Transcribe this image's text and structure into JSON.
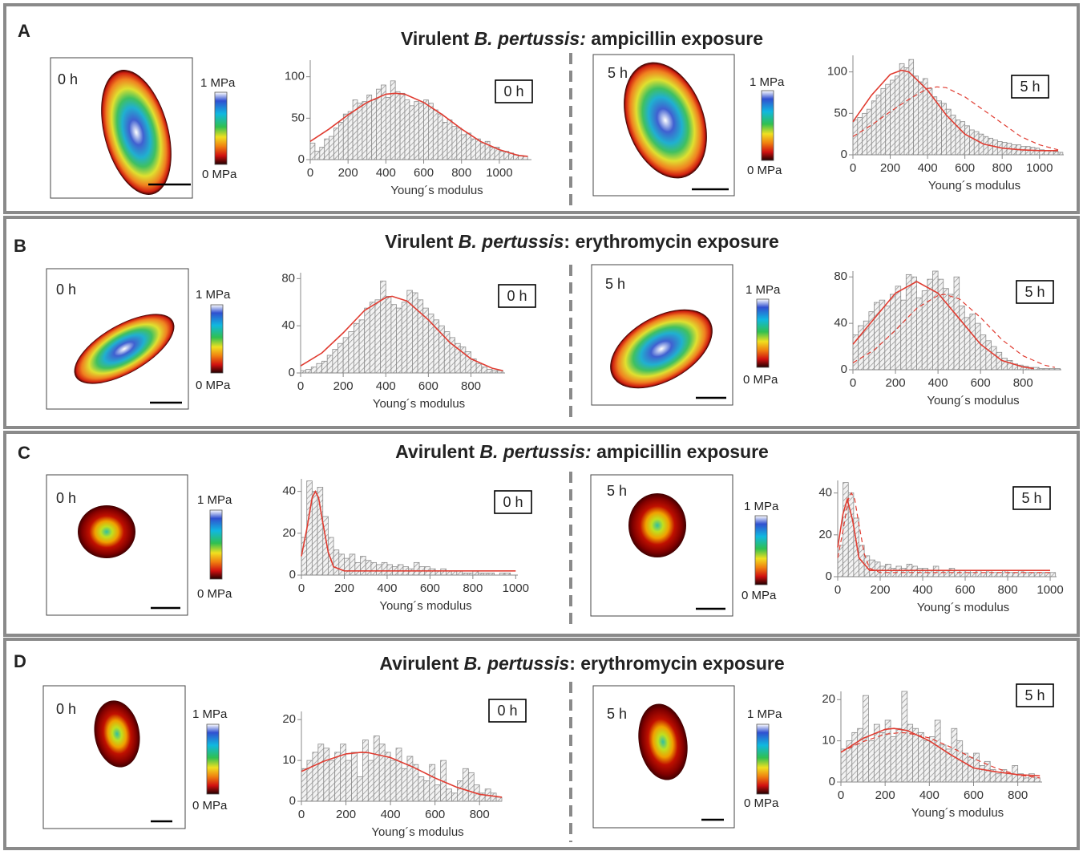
{
  "panels": [
    {
      "label": "A",
      "title": [
        "Virulent ",
        "B. pertussis:",
        " ampicillin exposure"
      ],
      "maps": [
        {
          "time": "0 h",
          "scale_max": "1 MPa",
          "scale_min": "0 MPa"
        },
        {
          "time": "5 h",
          "scale_max": "1 MPa",
          "scale_min": "0 MPa"
        }
      ]
    },
    {
      "label": "B",
      "title": [
        "Virulent ",
        "B. pertussis",
        ": erythromycin exposure"
      ],
      "maps": [
        {
          "time": "0 h",
          "scale_max": "1 MPa",
          "scale_min": "0 MPa"
        },
        {
          "time": "5 h",
          "scale_max": "1 MPa",
          "scale_min": "0 MPa"
        }
      ]
    },
    {
      "label": "C",
      "title": [
        "Avirulent ",
        "B. pertussis:",
        " ampicillin exposure"
      ],
      "maps": [
        {
          "time": "0 h",
          "scale_max": "1 MPa",
          "scale_min": "0 MPa"
        },
        {
          "time": "5 h",
          "scale_max": "1 MPa",
          "scale_min": "0 MPa"
        }
      ]
    },
    {
      "label": "D",
      "title": [
        "Avirulent ",
        "B. pertussis",
        ": erythromycin exposure"
      ],
      "maps": [
        {
          "time": "0 h",
          "scale_max": "1 MPa",
          "scale_min": "0 MPa"
        },
        {
          "time": "5 h",
          "scale_max": "1 MPa",
          "scale_min": "0 MPa"
        }
      ]
    }
  ],
  "chart_data": [
    {
      "type": "histogram",
      "time_label": "0 h",
      "xlabel": "Young´s modulus",
      "color": "#8c8c8c",
      "bins": [
        0,
        25,
        50,
        75,
        100,
        125,
        150,
        175,
        200,
        225,
        250,
        275,
        300,
        325,
        350,
        375,
        400,
        425,
        450,
        475,
        500,
        525,
        550,
        575,
        600,
        625,
        650,
        675,
        700,
        725,
        750,
        775,
        800,
        825,
        850,
        875,
        900,
        925,
        950,
        975,
        1000,
        1025,
        1050,
        1075,
        1100,
        1125,
        1150
      ],
      "values": [
        20,
        10,
        15,
        25,
        28,
        38,
        45,
        55,
        58,
        72,
        68,
        70,
        78,
        72,
        85,
        90,
        75,
        95,
        82,
        80,
        72,
        65,
        70,
        68,
        72,
        68,
        60,
        55,
        45,
        48,
        40,
        38,
        30,
        32,
        25,
        25,
        20,
        22,
        15,
        15,
        10,
        10,
        8,
        6,
        5,
        4
      ],
      "xlim": [
        0,
        1170
      ],
      "ylim": [
        0,
        120
      ],
      "xticks": [
        0,
        200,
        400,
        600,
        800,
        1000
      ],
      "yticks": [
        0,
        50,
        100
      ],
      "fits": [
        {
          "style": "solid",
          "color": "#e03c31",
          "x": [
            0,
            100,
            200,
            300,
            400,
            450,
            500,
            600,
            700,
            800,
            900,
            1000,
            1100,
            1150
          ],
          "values": [
            22,
            37,
            54,
            69,
            79,
            80,
            79,
            69,
            54,
            37,
            22,
            12,
            5,
            4
          ]
        }
      ]
    },
    {
      "type": "histogram",
      "time_label": "5 h",
      "xlabel": "Young´s modulus",
      "color": "#8c8c8c",
      "bins": [
        0,
        25,
        50,
        75,
        100,
        125,
        150,
        175,
        200,
        225,
        250,
        275,
        300,
        325,
        350,
        375,
        400,
        425,
        450,
        475,
        500,
        525,
        550,
        575,
        600,
        625,
        650,
        675,
        700,
        725,
        750,
        775,
        800,
        825,
        850,
        875,
        900,
        925,
        950,
        975,
        1000,
        1025,
        1050,
        1075,
        1100,
        1125
      ],
      "values": [
        42,
        45,
        50,
        55,
        65,
        72,
        80,
        85,
        90,
        95,
        110,
        105,
        115,
        95,
        88,
        92,
        80,
        70,
        65,
        62,
        55,
        48,
        42,
        40,
        35,
        30,
        28,
        25,
        22,
        20,
        18,
        16,
        15,
        14,
        12,
        12,
        10,
        10,
        9,
        8,
        6,
        5,
        5,
        4,
        3
      ],
      "xlim": [
        0,
        1130
      ],
      "ylim": [
        0,
        120
      ],
      "xticks": [
        0,
        200,
        400,
        600,
        800,
        1000
      ],
      "yticks": [
        0,
        50,
        100
      ],
      "fits": [
        {
          "style": "solid",
          "color": "#e03c31",
          "x": [
            0,
            100,
            200,
            260,
            300,
            400,
            500,
            600,
            700,
            800,
            900,
            1000,
            1100
          ],
          "values": [
            40,
            72,
            97,
            102,
            100,
            78,
            48,
            25,
            13,
            8,
            6,
            5,
            5
          ]
        },
        {
          "style": "dashed",
          "color": "#e03c31",
          "x": [
            0,
            100,
            200,
            300,
            400,
            450,
            500,
            600,
            700,
            800,
            900,
            1000,
            1100
          ],
          "values": [
            22,
            36,
            52,
            67,
            80,
            82,
            81,
            70,
            54,
            38,
            22,
            12,
            6
          ]
        }
      ]
    },
    {
      "type": "histogram",
      "time_label": "0 h",
      "xlabel": "Young´s modulus",
      "color": "#8c8c8c",
      "bins": [
        0,
        25,
        50,
        75,
        100,
        125,
        150,
        175,
        200,
        225,
        250,
        275,
        300,
        325,
        350,
        375,
        400,
        425,
        450,
        475,
        500,
        525,
        550,
        575,
        600,
        625,
        650,
        675,
        700,
        725,
        750,
        775,
        800,
        825,
        850,
        875,
        900,
        925,
        950
      ],
      "values": [
        2,
        3,
        5,
        8,
        10,
        15,
        20,
        25,
        30,
        35,
        42,
        45,
        55,
        60,
        62,
        78,
        65,
        58,
        55,
        60,
        70,
        68,
        62,
        55,
        50,
        45,
        40,
        35,
        30,
        25,
        22,
        18,
        12,
        8,
        5,
        3,
        2,
        2
      ],
      "xlim": [
        0,
        960
      ],
      "ylim": [
        0,
        85
      ],
      "xticks": [
        0,
        200,
        400,
        600,
        800
      ],
      "yticks": [
        0,
        40,
        80
      ],
      "fits": [
        {
          "style": "solid",
          "color": "#e03c31",
          "x": [
            0,
            100,
            200,
            300,
            400,
            430,
            500,
            600,
            700,
            800,
            900,
            950
          ],
          "values": [
            6,
            17,
            34,
            53,
            64,
            65,
            61,
            45,
            26,
            12,
            4,
            2
          ]
        }
      ]
    },
    {
      "type": "histogram",
      "time_label": "5 h",
      "xlabel": "Young´s modulus",
      "color": "#8c8c8c",
      "bins": [
        0,
        25,
        50,
        75,
        100,
        125,
        150,
        175,
        200,
        225,
        250,
        275,
        300,
        325,
        350,
        375,
        400,
        425,
        450,
        475,
        500,
        525,
        550,
        575,
        600,
        625,
        650,
        675,
        700,
        725,
        750,
        775,
        800,
        825,
        850,
        875,
        900,
        925,
        950,
        975
      ],
      "values": [
        30,
        38,
        42,
        50,
        58,
        60,
        55,
        65,
        72,
        60,
        82,
        80,
        62,
        68,
        78,
        85,
        78,
        70,
        65,
        80,
        55,
        45,
        48,
        40,
        30,
        25,
        20,
        15,
        10,
        8,
        5,
        4,
        3,
        2,
        2,
        1,
        1,
        1,
        1
      ],
      "xlim": [
        0,
        980
      ],
      "ylim": [
        0,
        85
      ],
      "xticks": [
        0,
        200,
        400,
        600,
        800
      ],
      "yticks": [
        0,
        40,
        80
      ],
      "fits": [
        {
          "style": "solid",
          "color": "#e03c31",
          "x": [
            0,
            100,
            200,
            300,
            400,
            500,
            600,
            700,
            800,
            850
          ],
          "values": [
            22,
            44,
            66,
            76,
            66,
            44,
            22,
            8,
            2.4,
            1
          ]
        },
        {
          "style": "dashed",
          "color": "#e03c31",
          "x": [
            0,
            100,
            200,
            300,
            400,
            430,
            500,
            600,
            700,
            800,
            900,
            950
          ],
          "values": [
            6,
            17,
            34,
            53,
            64,
            65,
            61,
            45,
            26,
            12,
            4,
            2
          ]
        }
      ]
    },
    {
      "type": "histogram",
      "time_label": "0 h",
      "xlabel": "Young´s modulus",
      "color": "#8c8c8c",
      "bins": [
        0,
        25,
        50,
        75,
        100,
        125,
        150,
        175,
        200,
        225,
        250,
        275,
        300,
        325,
        350,
        375,
        400,
        425,
        450,
        475,
        500,
        525,
        550,
        575,
        600,
        625,
        650,
        675,
        700,
        725,
        750,
        775,
        800,
        825,
        850,
        875,
        900,
        925,
        950,
        975,
        1000
      ],
      "values": [
        18,
        45,
        40,
        42,
        28,
        18,
        12,
        10,
        8,
        10,
        6,
        9,
        7,
        6,
        5,
        6,
        5,
        4,
        5,
        4,
        3,
        6,
        4,
        4,
        3,
        2,
        3,
        2,
        2,
        2,
        1,
        1,
        2,
        1,
        1,
        1,
        0,
        1,
        1,
        0
      ],
      "xlim": [
        0,
        1010
      ],
      "ylim": [
        0,
        46
      ],
      "xticks": [
        0,
        200,
        400,
        600,
        800,
        1000
      ],
      "yticks": [
        0,
        20,
        40
      ],
      "fits": [
        {
          "style": "solid",
          "color": "#e03c31",
          "x": [
            0,
            25,
            50,
            65,
            80,
            100,
            125,
            150,
            200,
            400,
            600,
            800,
            1000
          ],
          "values": [
            9,
            22,
            37,
            40,
            37,
            25,
            11,
            4,
            2,
            2,
            2,
            2,
            2
          ]
        }
      ]
    },
    {
      "type": "histogram",
      "time_label": "5 h",
      "xlabel": "Young´s modulus",
      "color": "#8c8c8c",
      "bins": [
        0,
        25,
        50,
        75,
        100,
        125,
        150,
        175,
        200,
        225,
        250,
        275,
        300,
        325,
        350,
        375,
        400,
        425,
        450,
        475,
        500,
        525,
        550,
        575,
        600,
        625,
        650,
        675,
        700,
        725,
        750,
        775,
        800,
        825,
        850,
        875,
        900,
        925,
        950,
        975,
        1000,
        1025
      ],
      "values": [
        15,
        45,
        40,
        28,
        15,
        10,
        8,
        7,
        5,
        6,
        4,
        5,
        4,
        6,
        5,
        4,
        4,
        3,
        5,
        3,
        3,
        4,
        3,
        3,
        3,
        2,
        3,
        2,
        3,
        2,
        2,
        3,
        2,
        2,
        3,
        2,
        2,
        2,
        2,
        2,
        2
      ],
      "xlim": [
        0,
        1030
      ],
      "ylim": [
        0,
        46
      ],
      "xticks": [
        0,
        200,
        400,
        600,
        800,
        1000
      ],
      "yticks": [
        0,
        20,
        40
      ],
      "fits": [
        {
          "style": "solid",
          "color": "#e03c31",
          "x": [
            0,
            25,
            45,
            70,
            100,
            150,
            300,
            1000
          ],
          "values": [
            14,
            30,
            37,
            27,
            9,
            3,
            3,
            3
          ]
        },
        {
          "style": "dashed",
          "color": "#e03c31",
          "x": [
            0,
            25,
            50,
            65,
            80,
            100,
            125,
            150,
            200,
            1000
          ],
          "values": [
            9,
            22,
            37,
            40,
            37,
            25,
            11,
            4,
            2,
            2
          ]
        }
      ]
    },
    {
      "type": "histogram",
      "time_label": "0 h",
      "xlabel": "Young´s modulus",
      "color": "#8c8c8c",
      "bins": [
        0,
        25,
        50,
        75,
        100,
        125,
        150,
        175,
        200,
        225,
        250,
        275,
        300,
        325,
        350,
        375,
        400,
        425,
        450,
        475,
        500,
        525,
        550,
        575,
        600,
        625,
        650,
        675,
        700,
        725,
        750,
        775,
        800,
        825,
        850,
        875,
        900
      ],
      "values": [
        8,
        10,
        12,
        14,
        13,
        10,
        12,
        14,
        10,
        12,
        6,
        15,
        10,
        16,
        14,
        12,
        10,
        13,
        8,
        11,
        9,
        6,
        5,
        9,
        4,
        10,
        3,
        2,
        5,
        8,
        7,
        4,
        2,
        3,
        2,
        1
      ],
      "xlim": [
        0,
        900
      ],
      "ylim": [
        0,
        22
      ],
      "xticks": [
        0,
        200,
        400,
        600,
        800
      ],
      "yticks": [
        0,
        10,
        20
      ],
      "fits": [
        {
          "style": "solid",
          "color": "#e03c31",
          "x": [
            0,
            100,
            200,
            270,
            300,
            400,
            500,
            600,
            700,
            800,
            900
          ],
          "values": [
            7.3,
            9.8,
            11.6,
            12,
            11.9,
            10.7,
            8.4,
            5.7,
            3.4,
            1.7,
            1
          ]
        }
      ]
    },
    {
      "type": "histogram",
      "time_label": "5 h",
      "xlabel": "Young´s modulus",
      "color": "#8c8c8c",
      "bins": [
        0,
        25,
        50,
        75,
        100,
        125,
        150,
        175,
        200,
        225,
        250,
        275,
        300,
        325,
        350,
        375,
        400,
        425,
        450,
        475,
        500,
        525,
        550,
        575,
        600,
        625,
        650,
        675,
        700,
        725,
        750,
        775,
        800,
        825,
        850,
        875,
        900
      ],
      "values": [
        8,
        10,
        12,
        13,
        21,
        10,
        14,
        12,
        15,
        11,
        13,
        22,
        14,
        13,
        12,
        10,
        11,
        15,
        9,
        8,
        13,
        10,
        7,
        6,
        7,
        4,
        5,
        3,
        2,
        3,
        2,
        4,
        2,
        1,
        2,
        1
      ],
      "xlim": [
        0,
        910
      ],
      "ylim": [
        0,
        22
      ],
      "xticks": [
        0,
        200,
        400,
        600,
        800
      ],
      "yticks": [
        0,
        10,
        20
      ],
      "fits": [
        {
          "style": "solid",
          "color": "#e03c31",
          "x": [
            0,
            100,
            200,
            240,
            300,
            400,
            500,
            600,
            700,
            800,
            900
          ],
          "values": [
            7.2,
            10.6,
            12.8,
            13,
            12.5,
            10,
            6.5,
            3.4,
            2.5,
            1.8,
            1.5
          ]
        },
        {
          "style": "dashed",
          "color": "#e03c31",
          "x": [
            0,
            100,
            200,
            270,
            300,
            400,
            500,
            600,
            700,
            800,
            900
          ],
          "values": [
            7.3,
            9.8,
            11.6,
            12,
            11.9,
            10.7,
            8.4,
            5.7,
            3.4,
            1.7,
            1
          ]
        }
      ]
    }
  ]
}
